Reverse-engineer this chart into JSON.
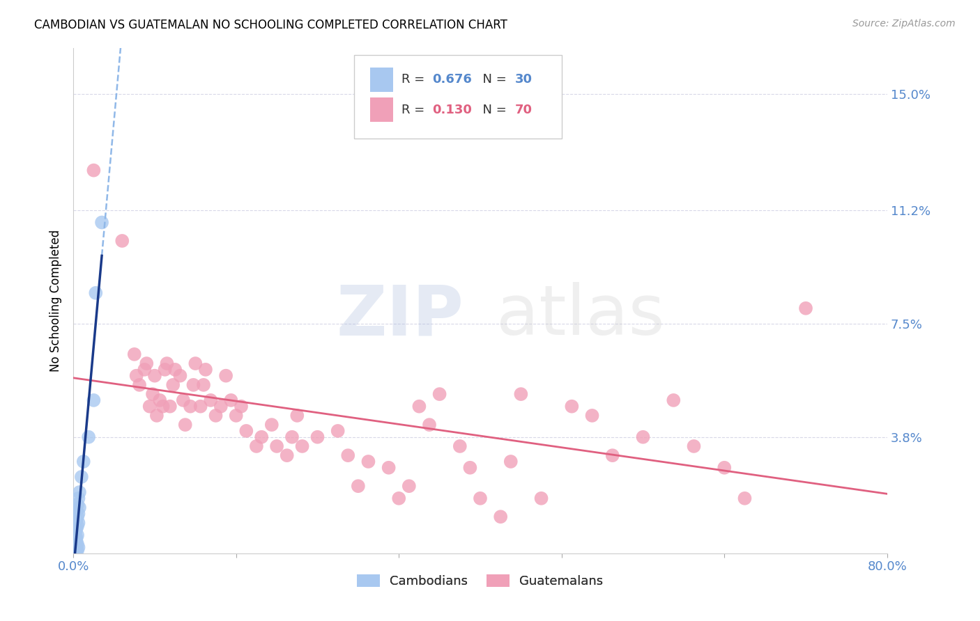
{
  "title": "CAMBODIAN VS GUATEMALAN NO SCHOOLING COMPLETED CORRELATION CHART",
  "source": "Source: ZipAtlas.com",
  "ylabel": "No Schooling Completed",
  "ytick_labels": [
    "15.0%",
    "11.2%",
    "7.5%",
    "3.8%"
  ],
  "ytick_values": [
    0.15,
    0.112,
    0.075,
    0.038
  ],
  "xlim": [
    0.0,
    0.8
  ],
  "ylim": [
    0.0,
    0.165
  ],
  "legend_r_cambodian": "0.676",
  "legend_n_cambodian": "30",
  "legend_r_guatemalan": "0.130",
  "legend_n_guatemalan": "70",
  "cambodian_color": "#a8c8f0",
  "guatemalan_color": "#f0a0b8",
  "trend_cambodian_solid_color": "#1a3a8a",
  "trend_cambodian_dash_color": "#90b8e8",
  "trend_guatemalan_color": "#e06080",
  "cambodian_points": [
    [
      0.002,
      0.001
    ],
    [
      0.003,
      0.001
    ],
    [
      0.002,
      0.002
    ],
    [
      0.004,
      0.001
    ],
    [
      0.003,
      0.002
    ],
    [
      0.002,
      0.003
    ],
    [
      0.004,
      0.003
    ],
    [
      0.003,
      0.004
    ],
    [
      0.005,
      0.002
    ],
    [
      0.002,
      0.005
    ],
    [
      0.003,
      0.005
    ],
    [
      0.004,
      0.006
    ],
    [
      0.002,
      0.007
    ],
    [
      0.003,
      0.008
    ],
    [
      0.004,
      0.009
    ],
    [
      0.005,
      0.01
    ],
    [
      0.003,
      0.011
    ],
    [
      0.004,
      0.012
    ],
    [
      0.005,
      0.013
    ],
    [
      0.003,
      0.014
    ],
    [
      0.006,
      0.015
    ],
    [
      0.004,
      0.016
    ],
    [
      0.005,
      0.018
    ],
    [
      0.006,
      0.02
    ],
    [
      0.008,
      0.025
    ],
    [
      0.01,
      0.03
    ],
    [
      0.015,
      0.038
    ],
    [
      0.02,
      0.05
    ],
    [
      0.022,
      0.085
    ],
    [
      0.028,
      0.108
    ]
  ],
  "guatemalan_points": [
    [
      0.02,
      0.125
    ],
    [
      0.048,
      0.102
    ],
    [
      0.06,
      0.065
    ],
    [
      0.062,
      0.058
    ],
    [
      0.065,
      0.055
    ],
    [
      0.07,
      0.06
    ],
    [
      0.072,
      0.062
    ],
    [
      0.075,
      0.048
    ],
    [
      0.078,
      0.052
    ],
    [
      0.08,
      0.058
    ],
    [
      0.082,
      0.045
    ],
    [
      0.085,
      0.05
    ],
    [
      0.088,
      0.048
    ],
    [
      0.09,
      0.06
    ],
    [
      0.092,
      0.062
    ],
    [
      0.095,
      0.048
    ],
    [
      0.098,
      0.055
    ],
    [
      0.1,
      0.06
    ],
    [
      0.105,
      0.058
    ],
    [
      0.108,
      0.05
    ],
    [
      0.11,
      0.042
    ],
    [
      0.115,
      0.048
    ],
    [
      0.118,
      0.055
    ],
    [
      0.12,
      0.062
    ],
    [
      0.125,
      0.048
    ],
    [
      0.128,
      0.055
    ],
    [
      0.13,
      0.06
    ],
    [
      0.135,
      0.05
    ],
    [
      0.14,
      0.045
    ],
    [
      0.145,
      0.048
    ],
    [
      0.15,
      0.058
    ],
    [
      0.155,
      0.05
    ],
    [
      0.16,
      0.045
    ],
    [
      0.165,
      0.048
    ],
    [
      0.17,
      0.04
    ],
    [
      0.18,
      0.035
    ],
    [
      0.185,
      0.038
    ],
    [
      0.195,
      0.042
    ],
    [
      0.2,
      0.035
    ],
    [
      0.21,
      0.032
    ],
    [
      0.215,
      0.038
    ],
    [
      0.22,
      0.045
    ],
    [
      0.225,
      0.035
    ],
    [
      0.24,
      0.038
    ],
    [
      0.26,
      0.04
    ],
    [
      0.27,
      0.032
    ],
    [
      0.28,
      0.022
    ],
    [
      0.29,
      0.03
    ],
    [
      0.31,
      0.028
    ],
    [
      0.32,
      0.018
    ],
    [
      0.33,
      0.022
    ],
    [
      0.34,
      0.048
    ],
    [
      0.35,
      0.042
    ],
    [
      0.36,
      0.052
    ],
    [
      0.38,
      0.035
    ],
    [
      0.39,
      0.028
    ],
    [
      0.4,
      0.018
    ],
    [
      0.42,
      0.012
    ],
    [
      0.43,
      0.03
    ],
    [
      0.44,
      0.052
    ],
    [
      0.46,
      0.018
    ],
    [
      0.49,
      0.048
    ],
    [
      0.51,
      0.045
    ],
    [
      0.53,
      0.032
    ],
    [
      0.56,
      0.038
    ],
    [
      0.59,
      0.05
    ],
    [
      0.61,
      0.035
    ],
    [
      0.64,
      0.028
    ],
    [
      0.66,
      0.018
    ],
    [
      0.72,
      0.08
    ]
  ],
  "grid_color": "#d8d8e8",
  "background_color": "#ffffff"
}
